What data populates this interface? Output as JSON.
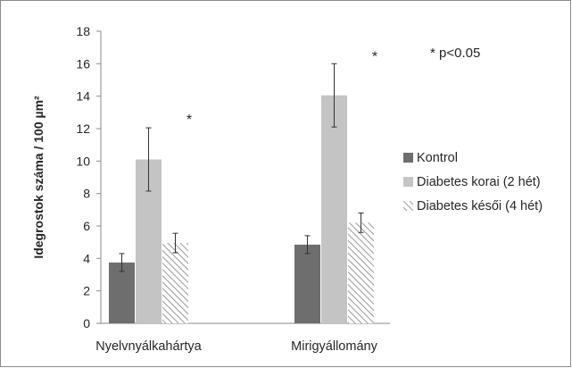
{
  "chart_data": {
    "type": "bar",
    "title": "",
    "xlabel": "",
    "ylabel": "Idegrostok száma  / 100 µm²",
    "ylim": [
      0,
      18
    ],
    "yticks": [
      0,
      2,
      4,
      6,
      8,
      10,
      12,
      14,
      16,
      18
    ],
    "grid": false,
    "legend_position": "right",
    "categories": [
      "Nyelvnyálkahártya",
      "Mirigyállomány"
    ],
    "series": [
      {
        "name": "Kontrol",
        "values": [
          3.75,
          4.85
        ],
        "errors": [
          0.55,
          0.55
        ],
        "color": "#6e6e6e",
        "fill": "solid"
      },
      {
        "name": "Diabetes korai (2 hét)",
        "values": [
          10.1,
          14.05
        ],
        "errors": [
          1.95,
          1.95
        ],
        "color": "#c4c4c4",
        "fill": "solid"
      },
      {
        "name": "Diabetes késői (4 hét)",
        "values": [
          4.95,
          6.2
        ],
        "errors": [
          0.6,
          0.6
        ],
        "color": "#b0b0b0",
        "fill": "hatched"
      }
    ],
    "annotations": [
      {
        "text": "*",
        "category_index": 0,
        "y": 12.6
      },
      {
        "text": "*",
        "category_index": 1,
        "y": 16.5
      }
    ],
    "note": "* p<0.05"
  }
}
